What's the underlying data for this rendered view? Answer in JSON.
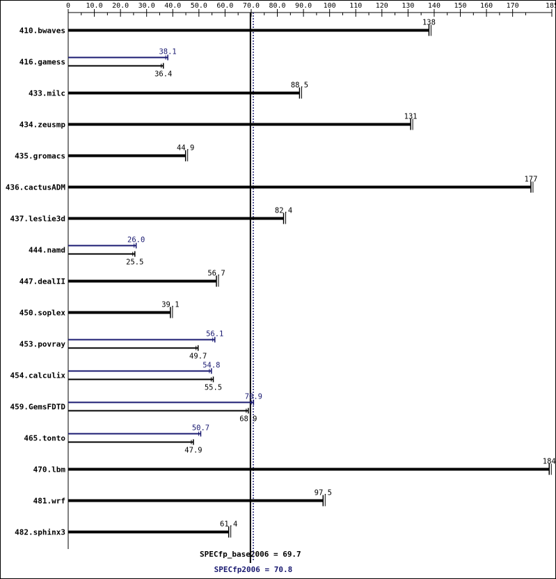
{
  "chart_data": {
    "type": "bar",
    "orientation": "horizontal",
    "x_ticks": [
      0,
      10.0,
      20.0,
      30.0,
      40.0,
      50.0,
      60.0,
      70.0,
      80.0,
      90.0,
      100,
      110,
      120,
      130,
      140,
      150,
      160,
      170,
      185
    ],
    "x_tick_labels": [
      "0",
      "10.0",
      "20.0",
      "30.0",
      "40.0",
      "50.0",
      "60.0",
      "70.0",
      "80.0",
      "90.0",
      "100",
      "110",
      "120",
      "130",
      "140",
      "150",
      "160",
      "170",
      "185"
    ],
    "xlim": [
      0,
      185
    ],
    "axis_position": "top",
    "categories": [
      "410.bwaves",
      "416.gamess",
      "433.milc",
      "434.zeusmp",
      "435.gromacs",
      "436.cactusADM",
      "437.leslie3d",
      "444.namd",
      "447.dealII",
      "450.soplex",
      "453.povray",
      "454.calculix",
      "459.GemsFDTD",
      "465.tonto",
      "470.lbm",
      "481.wrf",
      "482.sphinx3"
    ],
    "series": [
      {
        "role": "peak",
        "color": "#191970",
        "values": [
          null,
          38.1,
          null,
          null,
          null,
          null,
          null,
          26.0,
          null,
          null,
          56.1,
          54.8,
          70.9,
          50.7,
          null,
          null,
          null
        ],
        "labels": [
          null,
          "38.1",
          null,
          null,
          null,
          null,
          null,
          "26.0",
          null,
          null,
          "56.1",
          "54.8",
          "70.9",
          "50.7",
          null,
          null,
          null
        ]
      },
      {
        "role": "base",
        "color": "#000000",
        "values": [
          138,
          36.4,
          88.5,
          131,
          44.9,
          177,
          82.4,
          25.5,
          56.7,
          39.1,
          49.7,
          55.5,
          68.9,
          47.9,
          184,
          97.5,
          61.4
        ],
        "labels": [
          "138",
          "36.4",
          "88.5",
          "131",
          "44.9",
          "177",
          "82.4",
          "25.5",
          "56.7",
          "39.1",
          "49.7",
          "55.5",
          "68.9",
          "47.9",
          "184",
          "97.5",
          "61.4"
        ]
      }
    ],
    "reference_lines": [
      {
        "role": "base",
        "value": 69.7,
        "label": "SPECfp_base2006 = 69.7",
        "color": "#000000",
        "style": "solid"
      },
      {
        "role": "peak",
        "value": 70.8,
        "label": "SPECfp2006 = 70.8",
        "color": "#191970",
        "style": "dotted"
      }
    ],
    "grid": false,
    "legend": "none"
  }
}
